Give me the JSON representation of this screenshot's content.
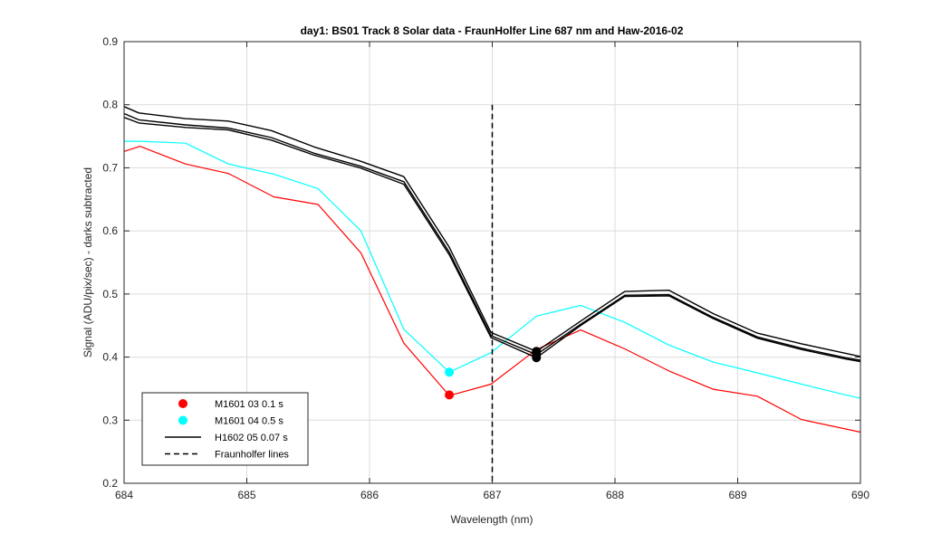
{
  "chart_data": {
    "type": "line",
    "title": "day1: BS01  Track 8 Solar data - FraunHolfer Line 687 nm and Haw-2016-02",
    "xlabel": "Wavelength (nm)",
    "ylabel": "Signal (ADU/pix/sec) - darks subtracted",
    "xlim": [
      684,
      690
    ],
    "ylim": [
      0.2,
      0.9
    ],
    "xticks": [
      "684",
      "685",
      "686",
      "687",
      "688",
      "689",
      "690"
    ],
    "yticks": [
      "0.2",
      "0.3",
      "0.4",
      "0.5",
      "0.6",
      "0.7",
      "0.8",
      "0.9"
    ],
    "grid": true,
    "legend_position": "bottom-left",
    "series": [
      {
        "name": "M1601 03 0.1 s",
        "color": "#ff0000",
        "x": [
          684.0,
          684.13,
          684.5,
          684.85,
          685.22,
          685.58,
          685.93,
          686.28,
          686.65,
          686.99,
          687.36,
          687.72,
          688.08,
          688.44,
          688.8,
          689.16,
          689.52,
          689.88,
          690.0
        ],
        "y": [
          0.726,
          0.734,
          0.706,
          0.691,
          0.654,
          0.642,
          0.565,
          0.422,
          0.339,
          0.357,
          0.412,
          0.443,
          0.413,
          0.378,
          0.349,
          0.338,
          0.301,
          0.286,
          0.281
        ],
        "marker": {
          "x": 686.65,
          "y": 0.34
        }
      },
      {
        "name": "M1601 04 0.5 s",
        "color": "#00ffff",
        "x": [
          684.0,
          684.13,
          684.5,
          684.85,
          685.22,
          685.58,
          685.93,
          686.28,
          686.65,
          686.99,
          687.36,
          687.72,
          688.08,
          688.44,
          688.8,
          689.16,
          689.52,
          689.88,
          690.0
        ],
        "y": [
          0.742,
          0.742,
          0.739,
          0.706,
          0.69,
          0.667,
          0.6,
          0.444,
          0.376,
          0.407,
          0.465,
          0.482,
          0.455,
          0.419,
          0.392,
          0.375,
          0.357,
          0.34,
          0.335
        ],
        "marker": {
          "x": 686.65,
          "y": 0.376
        }
      },
      {
        "name": "H1602 05 0.07 s",
        "color": "#000000",
        "x": [
          684.0,
          684.12,
          684.5,
          684.85,
          685.2,
          685.55,
          685.92,
          686.28,
          686.65,
          686.99,
          687.36,
          687.72,
          688.08,
          688.44,
          688.8,
          689.16,
          689.52,
          689.88,
          690.0
        ],
        "y": [
          0.797,
          0.787,
          0.778,
          0.774,
          0.759,
          0.733,
          0.711,
          0.686,
          0.574,
          0.439,
          0.409,
          0.457,
          0.504,
          0.506,
          0.469,
          0.438,
          0.421,
          0.406,
          0.401
        ],
        "marker": {
          "x": 687.36,
          "y": 0.409
        }
      },
      {
        "name": "",
        "color": "#000000",
        "x": [
          684.0,
          684.12,
          684.5,
          684.85,
          685.2,
          685.55,
          685.92,
          686.28,
          686.65,
          686.99,
          687.36,
          687.72,
          688.08,
          688.44,
          688.8,
          689.16,
          689.52,
          689.88,
          690.0
        ],
        "y": [
          0.786,
          0.776,
          0.768,
          0.763,
          0.748,
          0.723,
          0.703,
          0.678,
          0.566,
          0.434,
          0.404,
          0.452,
          0.498,
          0.499,
          0.463,
          0.432,
          0.414,
          0.399,
          0.395
        ],
        "marker": {
          "x": 687.36,
          "y": 0.404
        }
      },
      {
        "name": "",
        "color": "#000000",
        "x": [
          684.0,
          684.12,
          684.5,
          684.85,
          685.2,
          685.55,
          685.92,
          686.28,
          686.65,
          686.99,
          687.36,
          687.72,
          688.08,
          688.44,
          688.8,
          689.16,
          689.52,
          689.88,
          690.0
        ],
        "y": [
          0.78,
          0.771,
          0.764,
          0.76,
          0.744,
          0.72,
          0.7,
          0.674,
          0.562,
          0.431,
          0.399,
          0.45,
          0.496,
          0.497,
          0.461,
          0.43,
          0.412,
          0.397,
          0.393
        ],
        "marker": {
          "x": 687.36,
          "y": 0.399
        }
      }
    ],
    "vertical_lines": [
      {
        "name": "Fraunholfer lines",
        "x": 687.0,
        "y_range": [
          0.2,
          0.8
        ],
        "color": "#000000",
        "style": "dashed"
      }
    ],
    "legend": [
      {
        "label": "M1601 03 0.1 s",
        "type": "dot",
        "color": "#ff0000"
      },
      {
        "label": "M1601 04 0.5 s",
        "type": "dot",
        "color": "#00ffff"
      },
      {
        "label": "H1602 05 0.07 s",
        "type": "line",
        "color": "#000000"
      },
      {
        "label": "Fraunholfer lines",
        "type": "dashed",
        "color": "#000000"
      }
    ]
  }
}
